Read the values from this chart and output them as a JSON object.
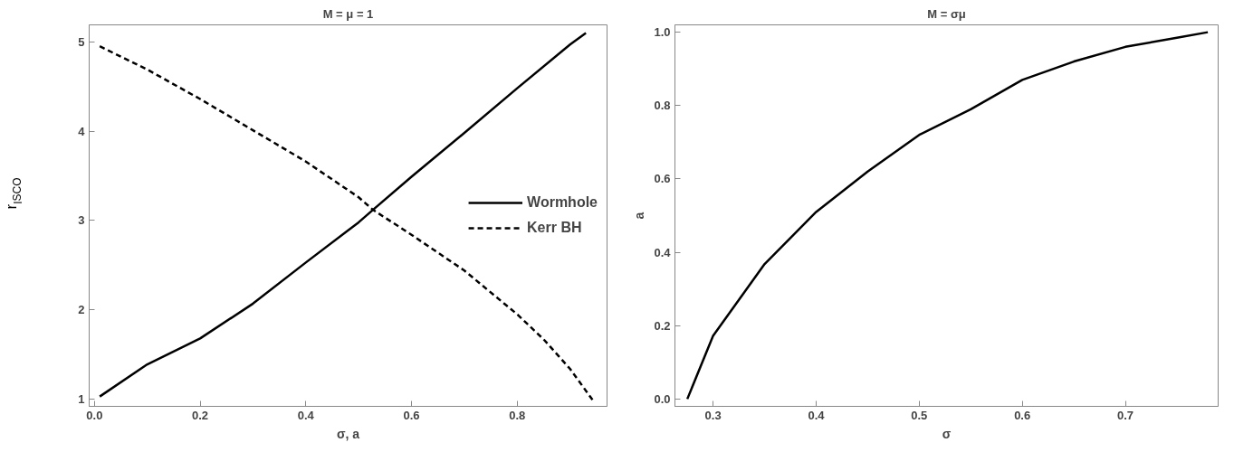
{
  "chart_data": [
    {
      "type": "line",
      "title": "M = μ = 1",
      "xlabel": "σ, a",
      "ylabel": "r$_{ISCO}$",
      "xlim": [
        -0.01,
        0.97
      ],
      "ylim": [
        0.92,
        5.19
      ],
      "xticks": [
        {
          "value": 0,
          "label": "0.0"
        },
        0.2,
        0.4,
        0.6,
        0.8
      ],
      "yticks": [
        1,
        2,
        3,
        4,
        5
      ],
      "grid": false,
      "legend": "right",
      "series": [
        {
          "name": "Wormhole",
          "color": "#000000",
          "line_style": "solid",
          "x": [
            0.01,
            0.1,
            0.2,
            0.3,
            0.4,
            0.5,
            0.527,
            0.6,
            0.7,
            0.8,
            0.9,
            0.93
          ],
          "values": [
            1.03,
            1.39,
            1.68,
            2.07,
            2.53,
            2.98,
            3.12,
            3.49,
            3.98,
            4.48,
            4.97,
            5.1
          ]
        },
        {
          "name": "Kerr BH",
          "color": "#000000",
          "line_style": "dashed",
          "x": [
            0.01,
            0.1,
            0.2,
            0.3,
            0.4,
            0.5,
            0.527,
            0.6,
            0.7,
            0.8,
            0.85,
            0.9,
            0.944
          ],
          "values": [
            4.95,
            4.69,
            4.36,
            4.01,
            3.66,
            3.26,
            3.12,
            2.84,
            2.44,
            1.95,
            1.67,
            1.34,
            0.98
          ]
        }
      ]
    },
    {
      "type": "line",
      "title": "M = σμ",
      "xlabel": "σ",
      "ylabel": "a",
      "xlim": [
        0.263,
        0.79
      ],
      "ylim": [
        -0.02,
        1.02
      ],
      "xticks": [
        0.3,
        0.4,
        0.5,
        0.6,
        0.7
      ],
      "yticks": [
        {
          "value": 0,
          "label": "0.0"
        },
        0.2,
        0.4,
        0.6,
        0.8,
        {
          "value": 1,
          "label": "1.0"
        }
      ],
      "grid": false,
      "series": [
        {
          "color": "#000000",
          "line_style": "solid",
          "x": [
            0.275,
            0.3,
            0.35,
            0.4,
            0.45,
            0.5,
            0.55,
            0.6,
            0.65,
            0.7,
            0.75,
            0.78
          ],
          "values": [
            0,
            0.172,
            0.368,
            0.51,
            0.62,
            0.72,
            0.79,
            0.87,
            0.92,
            0.96,
            0.985,
            1.0
          ]
        }
      ]
    }
  ]
}
